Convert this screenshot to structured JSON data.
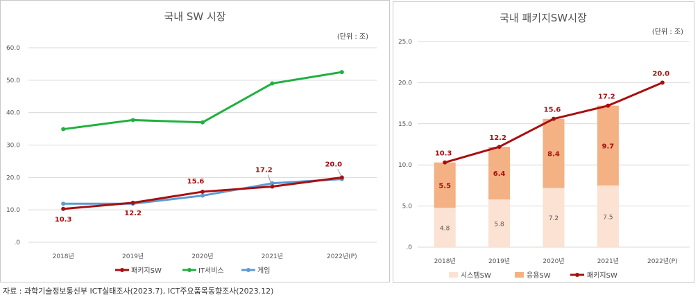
{
  "source_note": "자료 : 과학기술정보통신부 ICT실태조사(2023.7), ICT주요품목동향조사(2023.12)",
  "chart_data": [
    {
      "type": "line",
      "title": "국내 SW 시장",
      "unit": "(단위 : 조)",
      "categories": [
        "2018년",
        "2019년",
        "2020년",
        "2021년",
        "2022년(P)"
      ],
      "ylim": [
        0,
        60
      ],
      "yticks": [
        ".0",
        "10.0",
        "20.0",
        "30.0",
        "40.0",
        "50.0",
        "60.0"
      ],
      "grid": true,
      "legend": "bottom",
      "series": [
        {
          "name": "패키지SW",
          "color": "#a80f0f",
          "values": [
            10.3,
            12.2,
            15.6,
            17.2,
            20.0
          ],
          "labels": [
            "10.3",
            "12.2",
            "15.6",
            "17.2",
            "20.0"
          ]
        },
        {
          "name": "IT서비스",
          "color": "#1fb040",
          "values": [
            34.9,
            37.7,
            37.0,
            49.0,
            52.5
          ]
        },
        {
          "name": "게임",
          "color": "#5b9bd5",
          "values": [
            11.9,
            11.9,
            14.4,
            18.2,
            19.5
          ]
        }
      ]
    },
    {
      "type": "bar",
      "title": "국내 패키지SW시장",
      "unit": "(단위 : 조)",
      "categories": [
        "2018년",
        "2019년",
        "2020년",
        "2021년",
        "2022년(P)"
      ],
      "ylim": [
        0,
        25
      ],
      "yticks": [
        ".0",
        "5.0",
        "10.0",
        "15.0",
        "20.0",
        "25.0"
      ],
      "grid": true,
      "legend": "bottom",
      "series": [
        {
          "name": "시스템SW",
          "color": "#fbe2d2",
          "values": [
            4.8,
            5.8,
            7.2,
            7.5,
            null
          ],
          "labels": [
            "4.8",
            "5.8",
            "7.2",
            "7.5",
            ""
          ]
        },
        {
          "name": "응용SW",
          "color": "#f4b183",
          "values": [
            5.5,
            6.4,
            8.4,
            9.7,
            null
          ],
          "labels": [
            "5.5",
            "6.4",
            "8.4",
            "9.7",
            ""
          ]
        },
        {
          "name": "패키지SW",
          "color": "#a80f0f",
          "type": "line",
          "values": [
            10.3,
            12.2,
            15.6,
            17.2,
            20.0
          ],
          "labels": [
            "10.3",
            "12.2",
            "15.6",
            "17.2",
            "20.0"
          ]
        }
      ]
    }
  ]
}
